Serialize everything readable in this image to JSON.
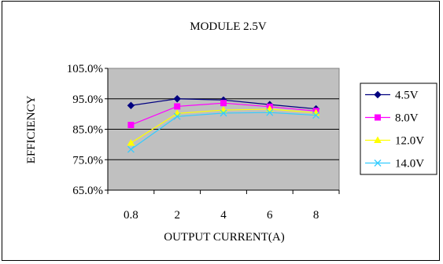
{
  "chart_data": {
    "type": "line",
    "title": "MODULE 2.5V",
    "xlabel": "OUTPUT CURRENT(A)",
    "ylabel": "EFFICIENCY",
    "categories": [
      "0.8",
      "2",
      "4",
      "6",
      "8"
    ],
    "yticks": [
      "65.0%",
      "75.0%",
      "85.0%",
      "95.0%",
      "105.0%"
    ],
    "ylim": [
      65,
      105
    ],
    "grid": true,
    "legend_position": "right",
    "plot_background": "#c0c0c0",
    "series": [
      {
        "name": "4.5V",
        "color": "#000080",
        "marker": "diamond",
        "values": [
          92.8,
          95.0,
          94.6,
          93.1,
          91.7
        ]
      },
      {
        "name": "8.0V",
        "color": "#ff00ff",
        "marker": "square",
        "values": [
          86.4,
          92.5,
          93.6,
          92.4,
          91.0
        ]
      },
      {
        "name": "12.0V",
        "color": "#ffff00",
        "marker": "triangle",
        "values": [
          80.5,
          90.2,
          91.3,
          91.6,
          90.4
        ]
      },
      {
        "name": "14.0V",
        "color": "#33ccff",
        "marker": "x",
        "values": [
          78.4,
          89.2,
          90.3,
          90.5,
          89.6
        ]
      }
    ]
  }
}
